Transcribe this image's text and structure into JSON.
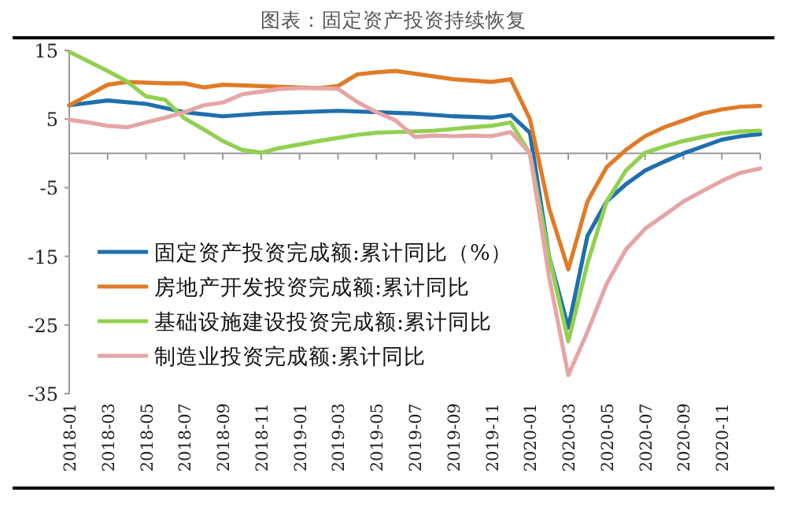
{
  "chart_data": {
    "type": "line",
    "title": "图表：固定资产投资持续恢复",
    "xlim": [
      "2018-01",
      "2021-01"
    ],
    "xticks": [
      {
        "value": "2018-01",
        "label": "2018-01"
      },
      {
        "value": "2018-03",
        "label": "2018-03"
      },
      {
        "value": "2018-05",
        "label": "2018-05"
      },
      {
        "value": "2018-07",
        "label": "2018-07"
      },
      {
        "value": "2018-09",
        "label": "2018-09"
      },
      {
        "value": "2018-11",
        "label": "2018-11"
      },
      {
        "value": "2019-01",
        "label": "2019-01"
      },
      {
        "value": "2019-03",
        "label": "2019-03"
      },
      {
        "value": "2019-05",
        "label": "2019-05"
      },
      {
        "value": "2019-07",
        "label": "2019-07"
      },
      {
        "value": "2019-09",
        "label": "2019-09"
      },
      {
        "value": "2019-11",
        "label": "2019-11"
      },
      {
        "value": "2020-01",
        "label": "2020-01"
      },
      {
        "value": "2020-03",
        "label": "2020-03"
      },
      {
        "value": "2020-05",
        "label": "2020-05"
      },
      {
        "value": "2020-07",
        "label": "2020-07"
      },
      {
        "value": "2020-09",
        "label": "2020-09"
      },
      {
        "value": "2020-11",
        "label": "2020-11"
      },
      {
        "value": "2021-01",
        "label": null
      }
    ],
    "ylim": [
      -35,
      15
    ],
    "yticks": [
      -35,
      -25,
      -15,
      -5,
      5,
      15
    ],
    "grid": false,
    "legend": "bottom left",
    "marker": "none",
    "line_style": "solid",
    "series": [
      {
        "name": "固定资产投资完成额:累计同比（%）",
        "color": "#1f6fae",
        "x": [
          "2018-01",
          "2018-03",
          "2018-05",
          "2018-07",
          "2018-09",
          "2018-11",
          "2019-01",
          "2019-03",
          "2019-05",
          "2019-07",
          "2019-09",
          "2019-11",
          "2019-12",
          "2020-01",
          "2020-02",
          "2020-03",
          "2020-04",
          "2020-05",
          "2020-06",
          "2020-07",
          "2020-08",
          "2020-09",
          "2020-10",
          "2020-11",
          "2020-12",
          "2021-01"
        ],
        "values": [
          7.0,
          7.7,
          7.2,
          6.0,
          5.4,
          5.8,
          6.0,
          6.2,
          6.0,
          5.8,
          5.4,
          5.2,
          5.6,
          3,
          -15,
          -25.4,
          -12,
          -7,
          -4.5,
          -2.5,
          -1.2,
          0,
          1.0,
          2.0,
          2.5,
          2.8
        ]
      },
      {
        "name": "房地产开发投资完成额:累计同比",
        "color": "#e07b26",
        "x": [
          "2018-01",
          "2018-02",
          "2018-03",
          "2018-04",
          "2018-06",
          "2018-07",
          "2018-08",
          "2018-09",
          "2018-11",
          "2019-01",
          "2019-02",
          "2019-03",
          "2019-04",
          "2019-05",
          "2019-06",
          "2019-08",
          "2019-09",
          "2019-10",
          "2019-11",
          "2019-12",
          "2020-01",
          "2020-02",
          "2020-03",
          "2020-04",
          "2020-05",
          "2020-06",
          "2020-07",
          "2020-08",
          "2020-09",
          "2020-10",
          "2020-11",
          "2020-12",
          "2021-01"
        ],
        "values": [
          7.0,
          8.5,
          10.0,
          10.4,
          10.2,
          10.2,
          9.6,
          10.0,
          9.8,
          9.6,
          9.5,
          9.8,
          11.5,
          11.8,
          12.0,
          11.2,
          10.8,
          10.6,
          10.4,
          10.8,
          5,
          -8,
          -16.9,
          -7,
          -2,
          0.5,
          2.5,
          3.8,
          4.8,
          5.8,
          6.4,
          6.8,
          6.9
        ]
      },
      {
        "name": "基础设施建设投资完成额:累计同比",
        "color": "#92d050",
        "x": [
          "2018-01",
          "2018-03",
          "2018-04",
          "2018-05",
          "2018-06",
          "2018-07",
          "2018-08",
          "2018-09",
          "2018-10",
          "2018-11",
          "2018-12",
          "2019-02",
          "2019-04",
          "2019-05",
          "2019-06",
          "2019-08",
          "2019-10",
          "2019-11",
          "2019-12",
          "2020-01",
          "2020-02",
          "2020-03",
          "2020-04",
          "2020-05",
          "2020-06",
          "2020-07",
          "2020-08",
          "2020-09",
          "2020-10",
          "2020-11",
          "2020-12",
          "2021-01"
        ],
        "values": [
          14.8,
          12,
          10.5,
          8.3,
          7.8,
          5.1,
          3.5,
          1.8,
          0.5,
          0.1,
          0.8,
          1.8,
          2.7,
          3.0,
          3.1,
          3.3,
          3.8,
          4.0,
          4.5,
          0,
          -15,
          -27.4,
          -16,
          -7,
          -2.5,
          0.1,
          1.0,
          1.8,
          2.4,
          2.9,
          3.2,
          3.3
        ]
      },
      {
        "name": "制造业投资完成额:累计同比",
        "color": "#e6a5a5",
        "x": [
          "2018-01",
          "2018-02",
          "2018-03",
          "2018-04",
          "2018-05",
          "2018-06",
          "2018-07",
          "2018-08",
          "2018-09",
          "2018-10",
          "2018-11",
          "2018-12",
          "2019-01",
          "2019-02",
          "2019-03",
          "2019-04",
          "2019-05",
          "2019-06",
          "2019-07",
          "2019-08",
          "2019-09",
          "2019-10",
          "2019-11",
          "2019-12",
          "2020-01",
          "2020-02",
          "2020-03",
          "2020-04",
          "2020-05",
          "2020-06",
          "2020-07",
          "2020-08",
          "2020-09",
          "2020-10",
          "2020-11",
          "2020-12",
          "2021-01"
        ],
        "values": [
          4.9,
          4.5,
          4.0,
          3.8,
          4.5,
          5.2,
          6.0,
          7.0,
          7.4,
          8.6,
          9.0,
          9.4,
          9.5,
          9.5,
          9.4,
          7.5,
          6.0,
          4.8,
          2.4,
          2.6,
          2.5,
          2.6,
          2.5,
          3.1,
          0,
          -18,
          -32.3,
          -26,
          -19,
          -14,
          -11,
          -9,
          -7,
          -5.5,
          -4.0,
          -2.8,
          -2.2
        ]
      }
    ]
  }
}
